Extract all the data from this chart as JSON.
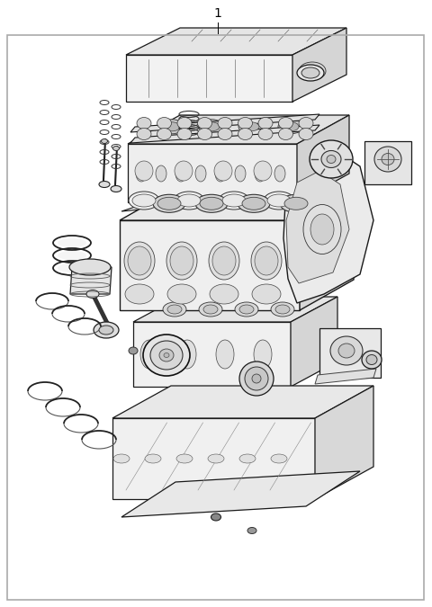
{
  "title_number": "1",
  "background_color": "#ffffff",
  "border_color": "#aaaaaa",
  "border_linewidth": 1.2,
  "fig_width": 4.8,
  "fig_height": 6.75,
  "dpi": 100,
  "title_fontsize": 10,
  "lw_main": 0.9,
  "lw_thin": 0.5,
  "ec_main": "#1a1a1a",
  "ec_thin": "#444444",
  "fc_light": "#f0f0f0",
  "fc_mid": "#e0e0e0",
  "fc_dark": "#cccccc"
}
